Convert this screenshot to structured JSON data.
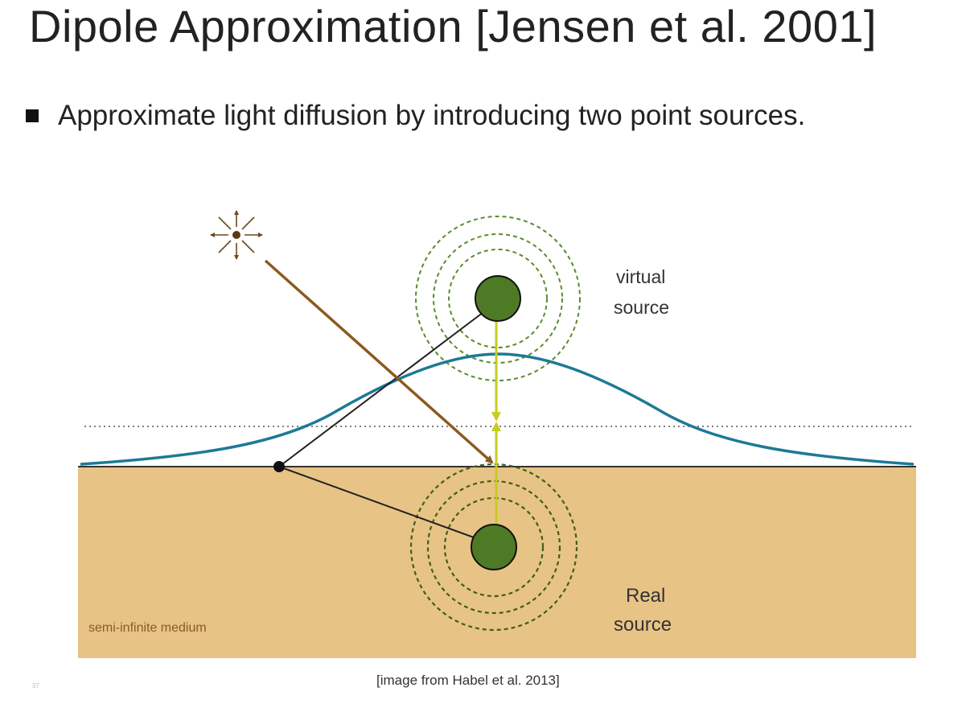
{
  "slide": {
    "title": "Dipole Approximation [Jensen et al. 2001]",
    "bullet": "Approximate light diffusion by introducing two point sources.",
    "caption": "[image from Habel et al. 2013]",
    "page_number": "37"
  },
  "diagram": {
    "labels": {
      "virtual_line1": "virtual",
      "virtual_line2": "source",
      "real_line1": "Real",
      "real_line2": "source",
      "medium": "semi-infinite medium"
    },
    "colors": {
      "medium_fill": "#e8c386",
      "source_fill": "#4e7a26",
      "dashed_ring": "#5c8a2e",
      "profile_curve": "#1d7a95",
      "light_ray": "#8b5a1e",
      "dipole_axis": "#c7cc1f",
      "connector": "#222222",
      "surface_line": "#333333"
    },
    "icons": [
      "light-source-icon"
    ]
  }
}
